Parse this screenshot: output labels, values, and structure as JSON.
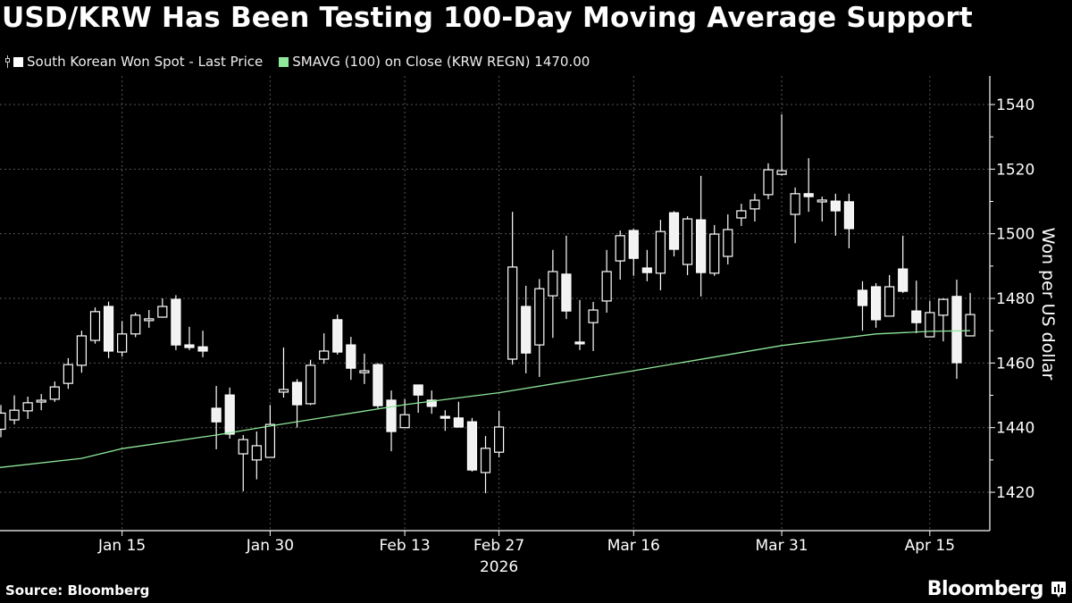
{
  "title": "USD/KRW Has Been Testing 100-Day Moving Average Support",
  "legend": [
    {
      "label": "South Korean Won Spot - Last Price",
      "color": "#ffffff",
      "icon": "candlestick-icon"
    },
    {
      "label": "SMAVG (100)  on Close (KRW REGN) 1470.00",
      "color": "#8fe89b"
    }
  ],
  "footer": {
    "source": "Source: Bloomberg",
    "brand": "Bloomberg"
  },
  "chart_data": {
    "type": "candlestick",
    "title": "USD/KRW Has Been Testing 100-Day Moving Average Support",
    "ylabel": "Won per US dollar",
    "ylim": [
      1408,
      1548
    ],
    "yticks": [
      "1420",
      "1440",
      "1460",
      "1480",
      "1500",
      "1520",
      "1540"
    ],
    "yaxis_side": "right",
    "grid": true,
    "xticks": [
      {
        "date": "Jan 15",
        "label": "Jan 15"
      },
      {
        "date": "Jan 30",
        "label": "Jan 30"
      },
      {
        "date": "Feb 13",
        "label": "Feb 13"
      },
      {
        "date": "Feb 27",
        "label": "Feb 27"
      },
      {
        "date": "Mar 16",
        "label": "Mar 16"
      },
      {
        "date": "Mar 31",
        "label": "Mar 31"
      },
      {
        "date": "Apr 15",
        "label": "Apr 15"
      }
    ],
    "year_label": "2026",
    "up_color": "#000000",
    "down_color": "#f2f2f2",
    "candle_outline": "#ffffff",
    "sma_color": "#8fe89b",
    "columns": [
      "date",
      "open",
      "high",
      "low",
      "close"
    ],
    "candles": [
      [
        "Jan 2",
        1439.5,
        1447,
        1437,
        1444.5
      ],
      [
        "Jan 5",
        1442.4,
        1450,
        1441,
        1445.4
      ],
      [
        "Jan 6",
        1445.2,
        1449.6,
        1442.7,
        1447.7
      ],
      [
        "Jan 7",
        1448,
        1450.4,
        1445.4,
        1448.4
      ],
      [
        "Jan 8",
        1448.8,
        1454.3,
        1448,
        1452.6
      ],
      [
        "Jan 9",
        1453.7,
        1461.5,
        1452,
        1459.5
      ],
      [
        "Jan 12",
        1459.3,
        1470,
        1457,
        1468.4
      ],
      [
        "Jan 13",
        1467,
        1477.2,
        1466,
        1475.9
      ],
      [
        "Jan 14",
        1477.5,
        1479,
        1461.5,
        1463.7
      ],
      [
        "Jan 15",
        1463.4,
        1473,
        1462,
        1469
      ],
      [
        "Jan 16",
        1469,
        1475.6,
        1468,
        1474.8
      ],
      [
        "Jan 19",
        1473.2,
        1476.4,
        1470.9,
        1473.6
      ],
      [
        "Jan 20",
        1474.2,
        1480,
        1474,
        1477.5
      ],
      [
        "Jan 21",
        1479.7,
        1481,
        1464,
        1465.6
      ],
      [
        "Jan 22",
        1465.6,
        1471.2,
        1464,
        1464.8
      ],
      [
        "Jan 23",
        1465,
        1470,
        1461.8,
        1463.7
      ],
      [
        "Jan 26",
        1446,
        1452.9,
        1433.3,
        1441.8
      ],
      [
        "Jan 27",
        1450.1,
        1452.4,
        1436.6,
        1438
      ],
      [
        "Jan 28",
        1431.9,
        1437.7,
        1420.3,
        1436.3
      ],
      [
        "Jan 29",
        1430,
        1438.8,
        1424,
        1434.4
      ],
      [
        "Jan 30",
        1430.8,
        1447,
        1430.8,
        1441
      ],
      [
        "Feb 2",
        1451,
        1464.8,
        1449.3,
        1451.8
      ],
      [
        "Feb 3",
        1454,
        1455,
        1440,
        1447.1
      ],
      [
        "Feb 4",
        1447.4,
        1461,
        1447,
        1459.3
      ],
      [
        "Feb 5",
        1461.2,
        1469.2,
        1459.8,
        1463.7
      ],
      [
        "Feb 6",
        1473.4,
        1475,
        1462.6,
        1463.4
      ],
      [
        "Feb 9",
        1465.6,
        1468.1,
        1454.8,
        1458.4
      ],
      [
        "Feb 10",
        1457,
        1462.9,
        1453.5,
        1457.6
      ],
      [
        "Feb 11",
        1459.5,
        1460,
        1446,
        1446.8
      ],
      [
        "Feb 12",
        1448.5,
        1451.5,
        1432.7,
        1438.8
      ],
      [
        "Feb 13",
        1440,
        1448.8,
        1440,
        1444
      ],
      [
        "Feb 19",
        1453.2,
        1453.2,
        1444.6,
        1450.1
      ],
      [
        "Feb 20",
        1448.5,
        1451.5,
        1444.3,
        1446.6
      ],
      [
        "Feb 23",
        1443.4,
        1445.4,
        1439,
        1443
      ],
      [
        "Feb 24",
        1443,
        1448,
        1440,
        1440.2
      ],
      [
        "Feb 25",
        1441.8,
        1443,
        1426.4,
        1426.9
      ],
      [
        "Feb 26",
        1426.1,
        1437.4,
        1419.7,
        1433.6
      ],
      [
        "Feb 27",
        1432.4,
        1445.2,
        1430.8,
        1440.2
      ],
      [
        "Mar 3",
        1461.2,
        1506.8,
        1459.5,
        1489.7
      ],
      [
        "Mar 4",
        1477.5,
        1483.9,
        1456.8,
        1463.1
      ],
      [
        "Mar 5",
        1465.6,
        1486,
        1455.7,
        1483
      ],
      [
        "Mar 6",
        1480.8,
        1495,
        1467.8,
        1488.3
      ],
      [
        "Mar 9",
        1487.5,
        1499.4,
        1473.6,
        1476.1
      ],
      [
        "Mar 10",
        1466.4,
        1479.5,
        1464,
        1466
      ],
      [
        "Mar 11",
        1472.5,
        1478.9,
        1463.7,
        1476.4
      ],
      [
        "Mar 12",
        1479.2,
        1495,
        1475.6,
        1488.3
      ],
      [
        "Mar 13",
        1491.6,
        1501,
        1485.8,
        1499.4
      ],
      [
        "Mar 16",
        1501,
        1501.5,
        1487,
        1492.4
      ],
      [
        "Mar 17",
        1489.4,
        1495,
        1485.3,
        1488
      ],
      [
        "Mar 18",
        1487.8,
        1504.3,
        1482.5,
        1500.7
      ],
      [
        "Mar 19",
        1506.5,
        1507,
        1493,
        1495.2
      ],
      [
        "Mar 20",
        1490.5,
        1505.4,
        1487.2,
        1504.6
      ],
      [
        "Mar 23",
        1504.3,
        1517.9,
        1480.6,
        1488
      ],
      [
        "Mar 24",
        1487.8,
        1502.7,
        1487,
        1499.9
      ],
      [
        "Mar 25",
        1493,
        1506,
        1490.5,
        1501.3
      ],
      [
        "Mar 26",
        1504.9,
        1509.3,
        1502.4,
        1507.1
      ],
      [
        "Mar 27",
        1507.7,
        1512.4,
        1503.8,
        1510.4
      ],
      [
        "Mar 30",
        1512.1,
        1521.8,
        1510.7,
        1519.8
      ],
      [
        "Mar 31",
        1518.4,
        1537,
        1518,
        1519.5
      ],
      [
        "Apr 1",
        1506,
        1514.3,
        1497.1,
        1512.4
      ],
      [
        "Apr 2",
        1512.4,
        1523.4,
        1506.8,
        1511.5
      ],
      [
        "Apr 3",
        1509.9,
        1511.5,
        1503.8,
        1510.4
      ],
      [
        "Apr 6",
        1510.1,
        1512.4,
        1499.4,
        1507.1
      ],
      [
        "Apr 7",
        1509.9,
        1512.4,
        1495.5,
        1501.6
      ],
      [
        "Apr 8",
        1482.5,
        1485.3,
        1470,
        1477.8
      ],
      [
        "Apr 9",
        1483.6,
        1484.7,
        1470.9,
        1473.4
      ],
      [
        "Apr 10",
        1474.5,
        1487.2,
        1474.5,
        1483.6
      ],
      [
        "Apr 13",
        1489.1,
        1499.4,
        1481.7,
        1482.2
      ],
      [
        "Apr 14",
        1476.1,
        1485.5,
        1469.2,
        1472.5
      ],
      [
        "Apr 15",
        1468.1,
        1479.2,
        1468.1,
        1475.6
      ],
      [
        "Apr 16",
        1474.8,
        1480,
        1466.7,
        1479.7
      ],
      [
        "Apr 17",
        1480.6,
        1485.8,
        1455.1,
        1460.1
      ],
      [
        "Apr 20",
        1468.4,
        1481.7,
        1468.4,
        1475
      ]
    ],
    "sma_100": [
      [
        "Jan 2",
        1427.7
      ],
      [
        "Jan 12",
        1430.5
      ],
      [
        "Jan 15",
        1433.5
      ],
      [
        "Jan 26",
        1437.7
      ],
      [
        "Jan 30",
        1440.5
      ],
      [
        "Feb 13",
        1447.1
      ],
      [
        "Feb 27",
        1450.8
      ],
      [
        "Mar 16",
        1457.6
      ],
      [
        "Mar 31",
        1465.4
      ],
      [
        "Apr 9",
        1469
      ],
      [
        "Apr 15",
        1469.8
      ],
      [
        "Apr 20",
        1470
      ]
    ]
  }
}
